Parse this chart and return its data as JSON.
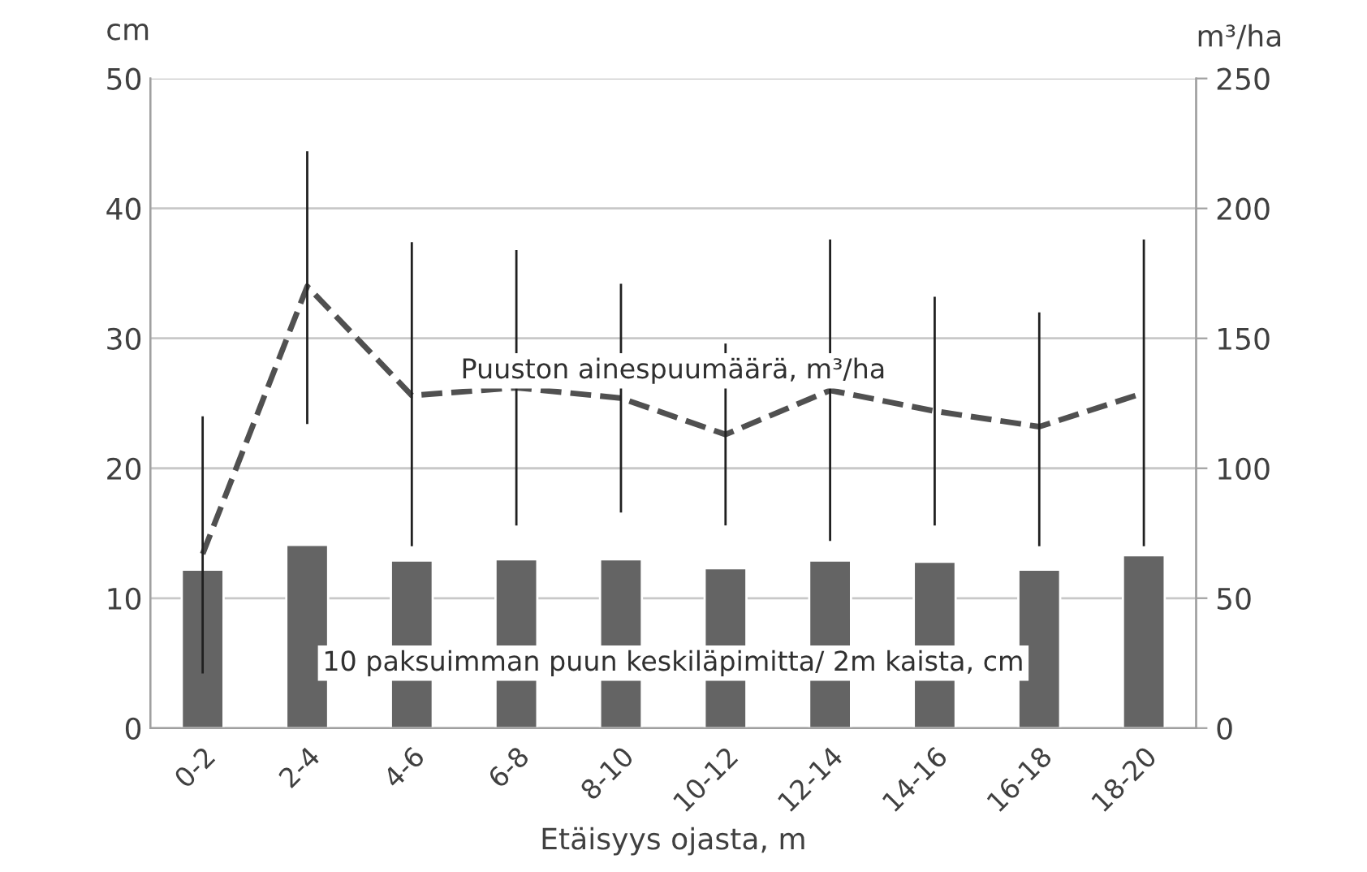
{
  "chart_data": {
    "type": "bar",
    "xlabel": "Etäisyys ojasta, m",
    "ylabel": "cm",
    "y2label": "m³/ha",
    "categories": [
      "0-2",
      "2-4",
      "4-6",
      "6-8",
      "8-10",
      "10-12",
      "12-14",
      "14-16",
      "16-18",
      "18-20"
    ],
    "series": [
      {
        "name": "10 paksuimman puun keskiläpimitta/ 2m kaista, cm",
        "color": "#646464",
        "values": [
          12.2,
          14.1,
          12.9,
          13.0,
          13.0,
          12.3,
          12.9,
          12.8,
          12.2,
          13.3
        ]
      },
      {
        "name": "Puuston ainespuumäärä, m³/ha",
        "type": "line",
        "axis": "y2",
        "color": "#505050",
        "line_style": "dashed",
        "marker": "none",
        "values": [
          67,
          170,
          128,
          131,
          127,
          113,
          130,
          122,
          116,
          129
        ],
        "errors": [
          [
            21,
            120
          ],
          [
            117,
            222
          ],
          [
            70,
            187
          ],
          [
            78,
            184
          ],
          [
            83,
            171
          ],
          [
            78,
            148
          ],
          [
            72,
            188
          ],
          [
            78,
            166
          ],
          [
            70,
            160
          ],
          [
            70,
            188
          ]
        ]
      }
    ],
    "ylim": [
      0,
      50
    ],
    "yticks": [
      0,
      10,
      20,
      30,
      40,
      50
    ],
    "y2lim": [
      0,
      250
    ],
    "y2ticks": [
      0,
      50,
      100,
      150,
      200,
      250
    ],
    "grid": "y",
    "legend": false
  }
}
